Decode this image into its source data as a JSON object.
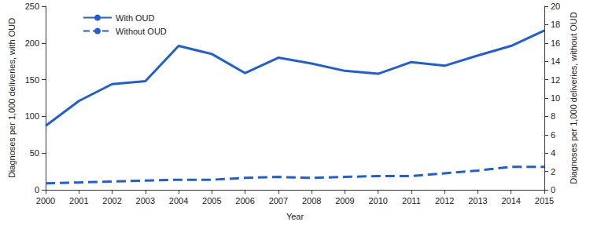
{
  "chart_data": {
    "type": "line",
    "x_label": "Year",
    "y_label": "Diagnoses per 1,000 deliveries, with OUD",
    "y2_label": "Diagnoses per 1,000 deliveries, without OUD",
    "categories": [
      "2000",
      "2001",
      "2002",
      "2003",
      "2004",
      "2005",
      "2006",
      "2007",
      "2008",
      "2009",
      "2010",
      "2011",
      "2012",
      "2013",
      "2014",
      "2015"
    ],
    "ylim": [
      0,
      250
    ],
    "yticks": [
      0,
      50,
      100,
      150,
      200,
      250
    ],
    "y2lim": [
      0,
      20
    ],
    "y2ticks": [
      0,
      2,
      4,
      6,
      8,
      10,
      12,
      14,
      16,
      18,
      20
    ],
    "grid": false,
    "legend": "upper left",
    "series": [
      {
        "name": "With OUD",
        "color": "#1f5fd6",
        "line_style": "solid",
        "values": [
          87,
          121,
          144,
          148,
          196,
          185,
          159,
          180,
          172,
          162,
          158,
          174,
          169,
          183,
          196,
          217
        ]
      },
      {
        "name": "Without OUD",
        "color": "#1f5fd6",
        "line_style": "dashed",
        "axis": "y2",
        "values": [
          0.7,
          0.8,
          0.9,
          1.0,
          1.1,
          1.1,
          1.3,
          1.4,
          1.3,
          1.4,
          1.5,
          1.5,
          1.8,
          2.1,
          2.5,
          2.5
        ]
      }
    ]
  }
}
